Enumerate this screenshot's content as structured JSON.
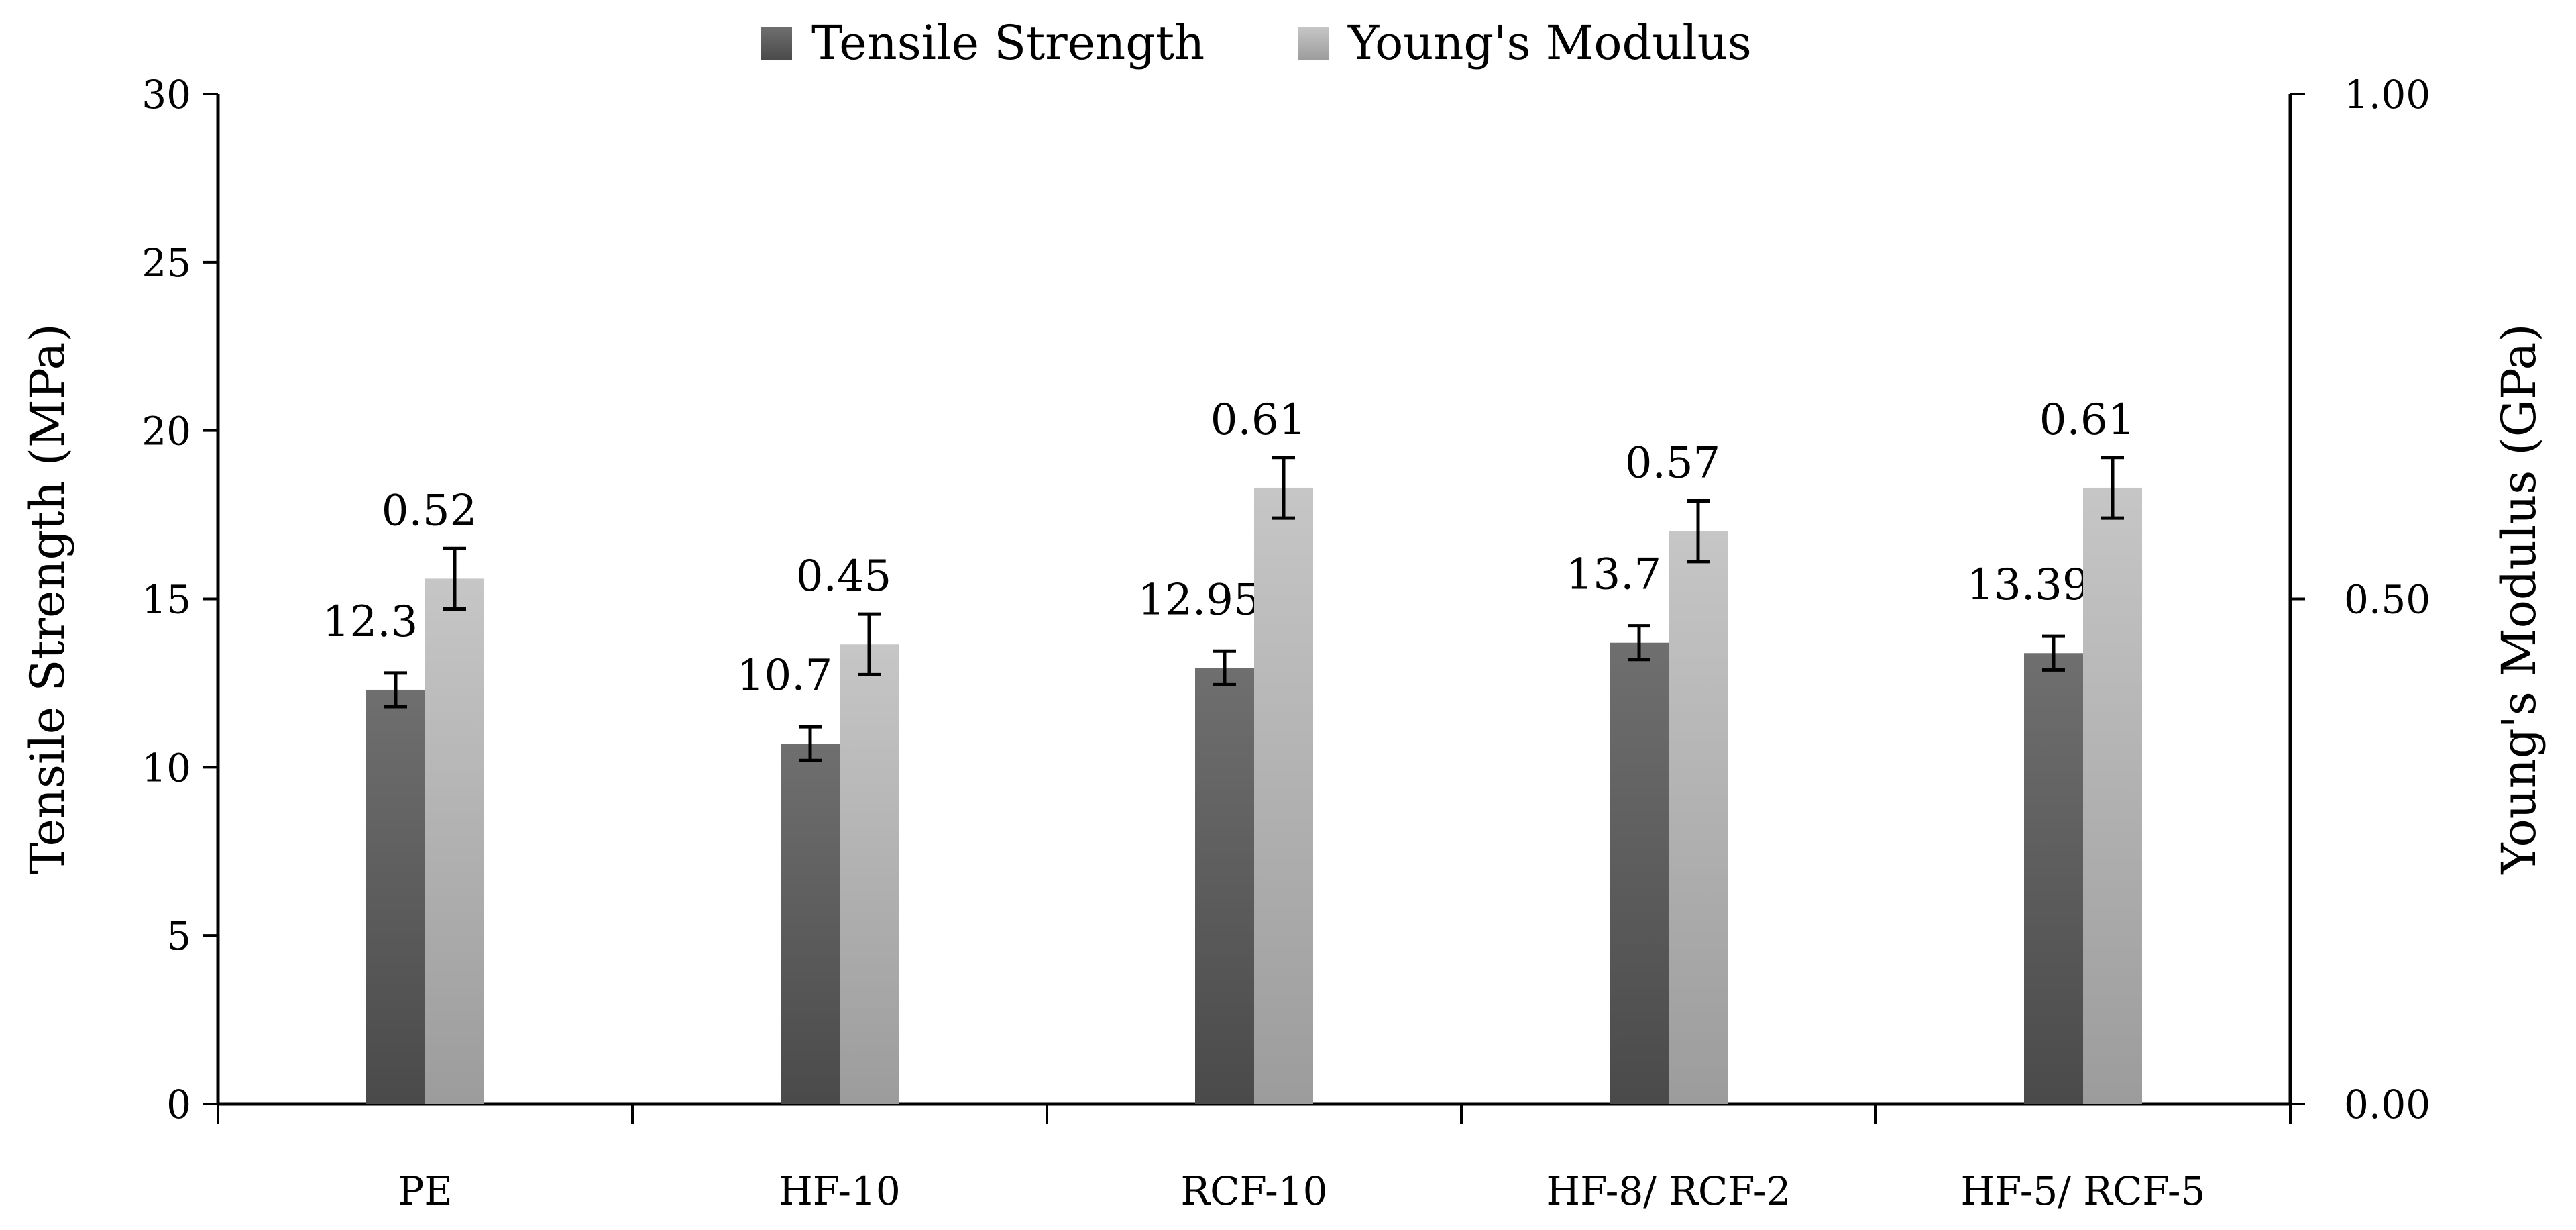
{
  "chart_data": {
    "type": "bar",
    "title": "",
    "categories": [
      "PE",
      "HF-10",
      "RCF-10",
      "HF-8/ RCF-2",
      "HF-5/ RCF-5"
    ],
    "series": [
      {
        "name": "Tensile Strength",
        "axis": "left",
        "values": [
          12.3,
          10.7,
          12.95,
          13.7,
          13.39
        ],
        "errors": [
          0.5,
          0.5,
          0.5,
          0.5,
          0.5
        ],
        "labels": [
          "12.3",
          "10.7",
          "12.95",
          "13.7",
          "13.39"
        ],
        "color_top": "#6f6f6f",
        "color_bottom": "#4a4a4a"
      },
      {
        "name": "Young's Modulus",
        "axis": "right",
        "values": [
          0.52,
          0.455,
          0.61,
          0.567,
          0.61
        ],
        "errors": [
          0.03,
          0.03,
          0.03,
          0.03,
          0.03
        ],
        "labels": [
          "0.52",
          "0.45",
          "0.61",
          "0.57",
          "0.61"
        ],
        "color_top": "#c6c6c6",
        "color_bottom": "#9c9c9c"
      }
    ],
    "ylabel_left": "Tensile Strength  (MPa)",
    "ylabel_right": "Young's Modulus (GPa)",
    "ylim_left": [
      0,
      30
    ],
    "ylim_right": [
      0,
      1
    ],
    "yticks_left": [
      "0",
      "5",
      "10",
      "15",
      "20",
      "25",
      "30"
    ],
    "yticks_right": [
      "0.00",
      "0.50",
      "1.00"
    ],
    "legend_position": "top-center",
    "grid": false
  }
}
